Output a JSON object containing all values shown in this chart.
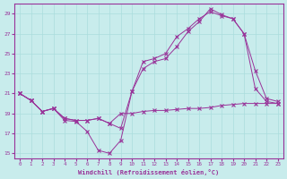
{
  "xlabel": "Windchill (Refroidissement éolien,°C)",
  "background_color": "#c8ecec",
  "grid_color": "#aadddd",
  "line_color": "#993399",
  "xlim": [
    -0.5,
    23.5
  ],
  "ylim": [
    14.5,
    30.0
  ],
  "yticks": [
    15,
    17,
    19,
    21,
    23,
    25,
    27,
    29
  ],
  "xticks": [
    0,
    1,
    2,
    3,
    4,
    5,
    6,
    7,
    8,
    9,
    10,
    11,
    12,
    13,
    14,
    15,
    16,
    17,
    18,
    19,
    20,
    21,
    22,
    23
  ],
  "line1_x": [
    0,
    1,
    2,
    3,
    4,
    5,
    6,
    7,
    8,
    9,
    10,
    11,
    12,
    13,
    14,
    15,
    16,
    17,
    18,
    19,
    20,
    21,
    22,
    23
  ],
  "line1_y": [
    21.0,
    20.3,
    19.2,
    19.5,
    18.3,
    18.2,
    17.2,
    15.3,
    15.0,
    16.3,
    21.2,
    23.5,
    24.2,
    24.5,
    25.7,
    27.2,
    28.2,
    29.5,
    28.9,
    28.5,
    27.0,
    21.5,
    20.2,
    20.0
  ],
  "line2_x": [
    0,
    1,
    2,
    3,
    4,
    5,
    6,
    7,
    8,
    9,
    10,
    11,
    12,
    13,
    14,
    15,
    16,
    17,
    18,
    19,
    20,
    21,
    22,
    23
  ],
  "line2_y": [
    21.0,
    20.3,
    19.2,
    19.5,
    18.5,
    18.3,
    18.3,
    18.5,
    18.0,
    19.0,
    19.0,
    19.2,
    19.3,
    19.3,
    19.4,
    19.5,
    19.5,
    19.6,
    19.8,
    19.9,
    20.0,
    20.0,
    20.0,
    20.0
  ],
  "line3_x": [
    0,
    1,
    2,
    3,
    4,
    5,
    6,
    7,
    8,
    9,
    10,
    11,
    12,
    13,
    14,
    15,
    16,
    17,
    18,
    19,
    20,
    21,
    22,
    23
  ],
  "line3_y": [
    21.0,
    20.3,
    19.2,
    19.5,
    18.5,
    18.3,
    18.3,
    18.5,
    18.0,
    17.5,
    21.2,
    24.2,
    24.5,
    25.0,
    26.7,
    27.5,
    28.5,
    29.2,
    28.8,
    28.5,
    27.0,
    23.3,
    20.5,
    20.2
  ]
}
